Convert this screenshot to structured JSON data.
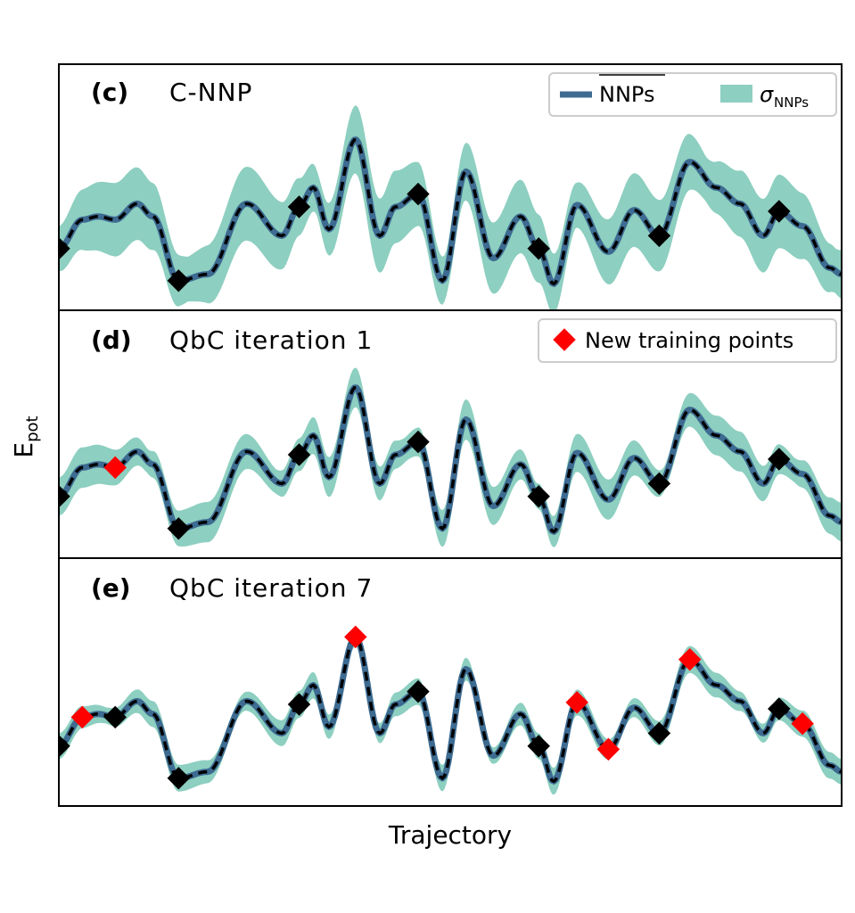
{
  "chart_data": {
    "type": "line",
    "xlabel": "Trajectory",
    "ylabel": "E",
    "ylabel_sub": "pot",
    "shared_x": true,
    "x_ticks": "none",
    "y_ticks": "none",
    "legend_line_label": "NNPs",
    "legend_band_label": "σ",
    "legend_band_sub": "NNPs",
    "legend_points_label": "New training points",
    "colors": {
      "mean_line": "#3d6b91",
      "band": "#8dcfc0",
      "existing_points": "#000000",
      "new_points": "#ff0000",
      "reference_line": "#000000"
    },
    "panels": [
      {
        "tag": "(c)",
        "title": "C-NNP",
        "legend": "top-right",
        "band_halfwidth": 0.11,
        "existing_points_x": [
          0.0,
          0.153,
          0.307,
          0.459,
          0.613,
          0.767,
          0.92
        ],
        "new_points_x": []
      },
      {
        "tag": "(d)",
        "title": "QbC iteration 1",
        "legend": "top-right",
        "band_halfwidth": 0.06,
        "existing_points_x": [
          0.0,
          0.153,
          0.307,
          0.459,
          0.613,
          0.767,
          0.92
        ],
        "new_points_x": [
          0.072
        ]
      },
      {
        "tag": "(e)",
        "title": "QbC iteration 7",
        "band_halfwidth": 0.04,
        "existing_points_x": [
          0.0,
          0.072,
          0.153,
          0.307,
          0.459,
          0.613,
          0.767,
          0.92
        ],
        "new_points_x": [
          0.03,
          0.379,
          0.662,
          0.702,
          0.806,
          0.95
        ]
      }
    ]
  }
}
